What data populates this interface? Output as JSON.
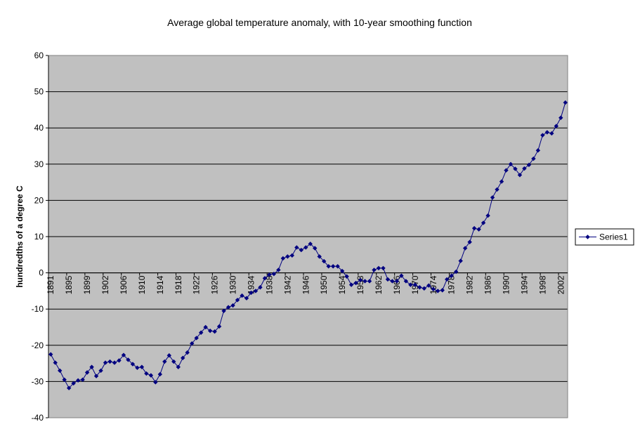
{
  "chart_data": {
    "type": "line",
    "title": "Average global temperature anomaly, with 10-year smoothing function",
    "y_label": "hundredths of a degree C",
    "categories": [
      "1891",
      null,
      null,
      null,
      "1895",
      null,
      null,
      null,
      "1899",
      null,
      null,
      null,
      "1902",
      null,
      null,
      null,
      "1906",
      null,
      null,
      null,
      "1910",
      null,
      null,
      null,
      "1914",
      null,
      null,
      null,
      "1918",
      null,
      null,
      null,
      "1922",
      null,
      null,
      null,
      "1926",
      null,
      null,
      null,
      "1930",
      null,
      null,
      null,
      "1934",
      null,
      null,
      null,
      "1938",
      null,
      null,
      null,
      "1942",
      null,
      null,
      null,
      "1946",
      null,
      null,
      null,
      "1950",
      null,
      null,
      null,
      "1954",
      null,
      null,
      null,
      "1958",
      null,
      null,
      null,
      "1962",
      null,
      null,
      null,
      "1966",
      null,
      null,
      null,
      "1970",
      null,
      null,
      null,
      "1974",
      null,
      null,
      null,
      "1978",
      null,
      null,
      null,
      "1982",
      null,
      null,
      null,
      "1986",
      null,
      null,
      null,
      "1990",
      null,
      null,
      null,
      "1994",
      null,
      null,
      null,
      "1998",
      null,
      null,
      null,
      "2002",
      null
    ],
    "series": [
      {
        "name": "Series1",
        "color": "#000080",
        "values": [
          -22.5,
          -24.8,
          -27,
          -29.5,
          -31.8,
          -30.5,
          -29.7,
          -29.5,
          -27.5,
          -26,
          -28.5,
          -27,
          -24.8,
          -24.5,
          -24.8,
          -24.2,
          -22.7,
          -24,
          -25.2,
          -26.2,
          -26,
          -27.8,
          -28.3,
          -30.2,
          -28,
          -24.5,
          -22.8,
          -24.5,
          -26,
          -23.5,
          -22,
          -19.5,
          -18,
          -16.5,
          -15,
          -16,
          -16.2,
          -14.8,
          -10.5,
          -9.5,
          -9,
          -7.5,
          -6.3,
          -7,
          -5.5,
          -5,
          -4,
          -1.5,
          -0.5,
          -0.3,
          0.8,
          4,
          4.5,
          4.8,
          7,
          6.3,
          7,
          8,
          6.8,
          4.5,
          3.2,
          1.8,
          1.8,
          1.8,
          0.5,
          -1,
          -3.3,
          -2.8,
          -2,
          -2.3,
          -2.3,
          0.8,
          1.3,
          1.3,
          -1.8,
          -2.3,
          -2.3,
          -0.8,
          -2.3,
          -3.3,
          -3.3,
          -4,
          -4.3,
          -3.5,
          -4.5,
          -5,
          -4.8,
          -1.8,
          -0.8,
          0.3,
          3.3,
          6.8,
          8.5,
          12.3,
          12,
          13.8,
          15.8,
          20.8,
          23,
          25.2,
          28.3,
          30,
          28.7,
          27,
          28.8,
          29.8,
          31.5,
          33.8,
          38,
          38.8,
          38.5,
          40.5,
          42.8,
          47
        ]
      }
    ],
    "ylim": [
      -40,
      60
    ],
    "yticks": [
      -40,
      -30,
      -20,
      -10,
      0,
      10,
      20,
      30,
      40,
      50,
      60
    ],
    "grid": true,
    "legend": "right"
  }
}
